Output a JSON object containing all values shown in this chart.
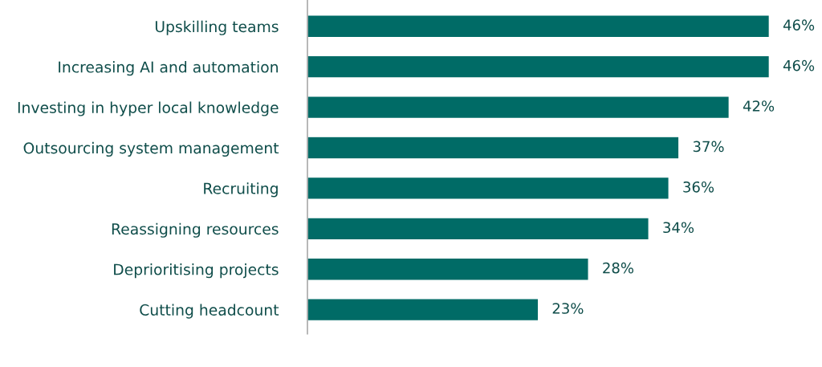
{
  "chart_data": {
    "type": "bar",
    "orientation": "horizontal",
    "categories": [
      "Upskilling teams",
      "Increasing AI and automation",
      "Investing in hyper local knowledge",
      "Outsourcing system management",
      "Recruiting",
      "Reassigning resources",
      "Deprioritising projects",
      "Cutting headcount"
    ],
    "values": [
      46,
      46,
      42,
      37,
      36,
      34,
      28,
      23
    ],
    "value_labels": [
      "46%",
      "46%",
      "42%",
      "37%",
      "36%",
      "34%",
      "28%",
      "23%"
    ],
    "color": "#006b66",
    "grid": false,
    "legend": false,
    "tick_labels": "y"
  }
}
